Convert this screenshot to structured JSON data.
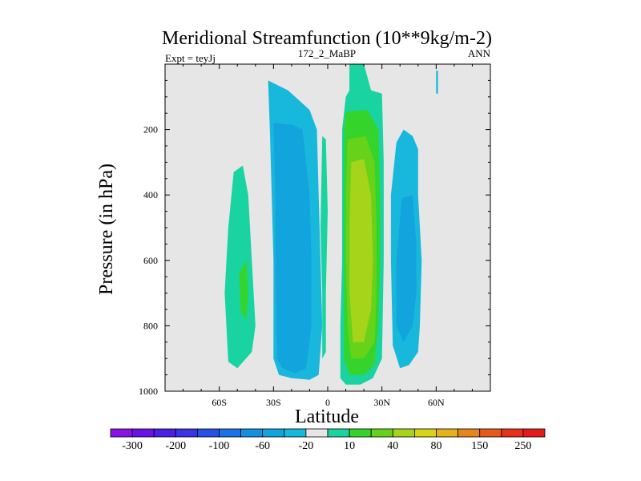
{
  "chart_data": {
    "type": "contour",
    "title": "Meridional Streamfunction (10**9kg/m-2)",
    "subtitle_left": "Expt = teyJj",
    "subtitle_center": "172_2_MaBP",
    "subtitle_right": "ANN",
    "xlabel": "Latitude",
    "ylabel": "Pressure (in hPa)",
    "xlim": [
      -90,
      90
    ],
    "ylim": [
      1000,
      0
    ],
    "x_ticks": [
      {
        "value": -60,
        "label": "60S"
      },
      {
        "value": -30,
        "label": "30S"
      },
      {
        "value": 0,
        "label": "0"
      },
      {
        "value": 30,
        "label": "30N"
      },
      {
        "value": 60,
        "label": "60N"
      }
    ],
    "y_ticks": [
      {
        "value": 200,
        "label": "200"
      },
      {
        "value": 400,
        "label": "400"
      },
      {
        "value": 600,
        "label": "600"
      },
      {
        "value": 800,
        "label": "800"
      },
      {
        "value": 1000,
        "label": "1000"
      }
    ],
    "background_color": "#e6e6e6",
    "colorbar": {
      "colors": [
        "#8a11e6",
        "#6a12e6",
        "#4a1fe6",
        "#3a33e6",
        "#2750e6",
        "#1a72e6",
        "#1590e0",
        "#12a4dc",
        "#17b8dc",
        "#e6e6e6",
        "#19d3a0",
        "#35d42c",
        "#66d21a",
        "#a6d41a",
        "#d8d21a",
        "#e6b01a",
        "#e6861a",
        "#e65a1a",
        "#e6301a",
        "#e61a1a"
      ],
      "labels": [
        {
          "boundary": 1,
          "text": "-300"
        },
        {
          "boundary": 3,
          "text": "-200"
        },
        {
          "boundary": 5,
          "text": "-100"
        },
        {
          "boundary": 7,
          "text": "-60"
        },
        {
          "boundary": 9,
          "text": "-20"
        },
        {
          "boundary": 11,
          "text": "10"
        },
        {
          "boundary": 13,
          "text": "40"
        },
        {
          "boundary": 15,
          "text": "80"
        },
        {
          "boundary": 17,
          "text": "150"
        },
        {
          "boundary": 19,
          "text": "250"
        }
      ]
    },
    "contour_regions": [
      {
        "name": "sh-ferrel-outer",
        "color": "#19d3a0",
        "points": [
          [
            -47,
            310
          ],
          [
            -44,
            400
          ],
          [
            -42,
            600
          ],
          [
            -40,
            800
          ],
          [
            -42,
            880
          ],
          [
            -50,
            930
          ],
          [
            -55,
            910
          ],
          [
            -57,
            700
          ],
          [
            -55,
            500
          ],
          [
            -52,
            330
          ]
        ]
      },
      {
        "name": "sh-ferrel-inner",
        "color": "#35d42c",
        "points": [
          [
            -45,
            600
          ],
          [
            -44,
            700
          ],
          [
            -45,
            780
          ],
          [
            -48,
            760
          ],
          [
            -49,
            640
          ]
        ]
      },
      {
        "name": "sh-hadley-outer",
        "color": "#17b8dc",
        "points": [
          [
            -33,
            50
          ],
          [
            -22,
            80
          ],
          [
            -18,
            100
          ],
          [
            -10,
            140
          ],
          [
            -6,
            200
          ],
          [
            -5,
            400
          ],
          [
            -4,
            600
          ],
          [
            -3,
            800
          ],
          [
            -5,
            950
          ],
          [
            -10,
            965
          ],
          [
            -20,
            960
          ],
          [
            -27,
            950
          ],
          [
            -30,
            900
          ],
          [
            -30,
            600
          ],
          [
            -31,
            400
          ],
          [
            -32,
            200
          ]
        ]
      },
      {
        "name": "sh-hadley-inner",
        "color": "#12a4dc",
        "points": [
          [
            -30,
            180
          ],
          [
            -20,
            185
          ],
          [
            -14,
            200
          ],
          [
            -10,
            400
          ],
          [
            -9,
            600
          ],
          [
            -9,
            800
          ],
          [
            -12,
            930
          ],
          [
            -18,
            945
          ],
          [
            -25,
            930
          ],
          [
            -28,
            900
          ],
          [
            -29,
            600
          ],
          [
            -29,
            400
          ]
        ]
      },
      {
        "name": "nh-hadley-outer",
        "color": "#19d3a0",
        "points": [
          [
            12,
            0
          ],
          [
            20,
            0
          ],
          [
            24,
            80
          ],
          [
            30,
            90
          ],
          [
            31,
            300
          ],
          [
            31,
            600
          ],
          [
            30,
            900
          ],
          [
            25,
            960
          ],
          [
            18,
            980
          ],
          [
            10,
            980
          ],
          [
            7,
            960
          ],
          [
            7,
            800
          ],
          [
            8,
            600
          ],
          [
            8,
            400
          ],
          [
            8,
            200
          ],
          [
            10,
            100
          ],
          [
            12,
            80
          ]
        ]
      },
      {
        "name": "nh-hadley-l2",
        "color": "#35d42c",
        "points": [
          [
            10,
            145
          ],
          [
            22,
            140
          ],
          [
            28,
            200
          ],
          [
            29,
            400
          ],
          [
            29,
            600
          ],
          [
            28,
            800
          ],
          [
            26,
            920
          ],
          [
            20,
            950
          ],
          [
            12,
            950
          ],
          [
            9,
            900
          ],
          [
            9,
            700
          ],
          [
            9,
            400
          ],
          [
            9,
            200
          ]
        ]
      },
      {
        "name": "nh-hadley-l3",
        "color": "#66d21a",
        "points": [
          [
            11,
            230
          ],
          [
            21,
            220
          ],
          [
            26,
            300
          ],
          [
            27,
            500
          ],
          [
            27,
            700
          ],
          [
            26,
            850
          ],
          [
            20,
            900
          ],
          [
            13,
            900
          ],
          [
            11,
            800
          ],
          [
            10,
            600
          ],
          [
            10,
            400
          ]
        ]
      },
      {
        "name": "nh-hadley-l4",
        "color": "#a6d41a",
        "points": [
          [
            13,
            300
          ],
          [
            20,
            290
          ],
          [
            24,
            400
          ],
          [
            25,
            600
          ],
          [
            24,
            750
          ],
          [
            20,
            850
          ],
          [
            14,
            850
          ],
          [
            12,
            700
          ],
          [
            12,
            500
          ]
        ]
      },
      {
        "name": "equatorial-sliver",
        "color": "#19d3a0",
        "points": [
          [
            -3,
            220
          ],
          [
            -1,
            230
          ],
          [
            0,
            450
          ],
          [
            -1,
            700
          ],
          [
            -1,
            880
          ],
          [
            -3,
            900
          ],
          [
            -3,
            700
          ],
          [
            -4,
            500
          ]
        ]
      },
      {
        "name": "nh-ferrel-outer",
        "color": "#17b8dc",
        "points": [
          [
            38,
            240
          ],
          [
            42,
            200
          ],
          [
            47,
            220
          ],
          [
            50,
            260
          ],
          [
            50,
            400
          ],
          [
            52,
            600
          ],
          [
            51,
            800
          ],
          [
            50,
            880
          ],
          [
            45,
            920
          ],
          [
            40,
            930
          ],
          [
            36,
            860
          ],
          [
            35,
            600
          ],
          [
            35,
            400
          ]
        ]
      },
      {
        "name": "nh-ferrel-inner",
        "color": "#12a4dc",
        "points": [
          [
            41,
            410
          ],
          [
            47,
            400
          ],
          [
            49,
            550
          ],
          [
            49,
            700
          ],
          [
            47,
            800
          ],
          [
            42,
            850
          ],
          [
            38,
            800
          ],
          [
            38,
            600
          ]
        ]
      },
      {
        "name": "polar-cell-trace",
        "color": "#17b8dc",
        "points": [
          [
            60,
            20
          ],
          [
            61,
            20
          ],
          [
            61,
            90
          ],
          [
            60,
            90
          ]
        ]
      }
    ]
  }
}
